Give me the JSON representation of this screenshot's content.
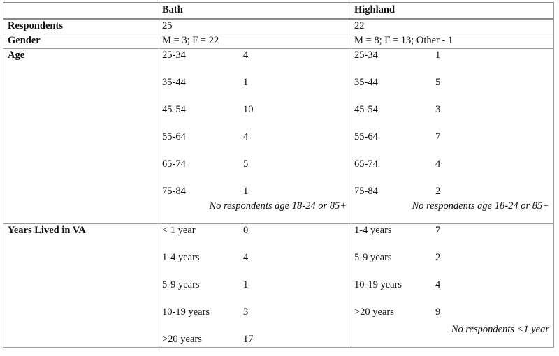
{
  "table": {
    "headers": [
      "",
      "Bath",
      "Highland"
    ],
    "respondents": {
      "label": "Respondents",
      "bath": "25",
      "highland": "22"
    },
    "gender": {
      "label": "Gender",
      "bath": "M = 3; F = 22",
      "highland": "M = 8; F = 13; Other - 1"
    },
    "age": {
      "label": "Age",
      "bath": [
        {
          "range": "25-34",
          "count": "4"
        },
        {
          "range": "35-44",
          "count": "1"
        },
        {
          "range": "45-54",
          "count": "10"
        },
        {
          "range": "55-64",
          "count": "4"
        },
        {
          "range": "65-74",
          "count": "5"
        },
        {
          "range": "75-84",
          "count": "1"
        }
      ],
      "highland": [
        {
          "range": "25-34",
          "count": "1"
        },
        {
          "range": "35-44",
          "count": "5"
        },
        {
          "range": "45-54",
          "count": "3"
        },
        {
          "range": "55-64",
          "count": "7"
        },
        {
          "range": "65-74",
          "count": "4"
        },
        {
          "range": "75-84",
          "count": "2"
        }
      ],
      "bath_note": "No respondents age 18-24 or 85+",
      "highland_note": "No respondents age 18-24 or 85+"
    },
    "years": {
      "label": "Years Lived in VA",
      "bath": [
        {
          "range": "< 1 year",
          "count": "0"
        },
        {
          "range": "1-4 years",
          "count": "4"
        },
        {
          "range": "5-9 years",
          "count": "1"
        },
        {
          "range": "10-19 years",
          "count": "3"
        },
        {
          "range": ">20 years",
          "count": "17"
        }
      ],
      "highland": [
        {
          "range": "1-4 years",
          "count": "7"
        },
        {
          "range": "5-9 years",
          "count": "2"
        },
        {
          "range": "10-19 years",
          "count": "4"
        },
        {
          "range": ">20 years",
          "count": "9"
        }
      ],
      "highland_note": "No respondents <1 year"
    }
  }
}
